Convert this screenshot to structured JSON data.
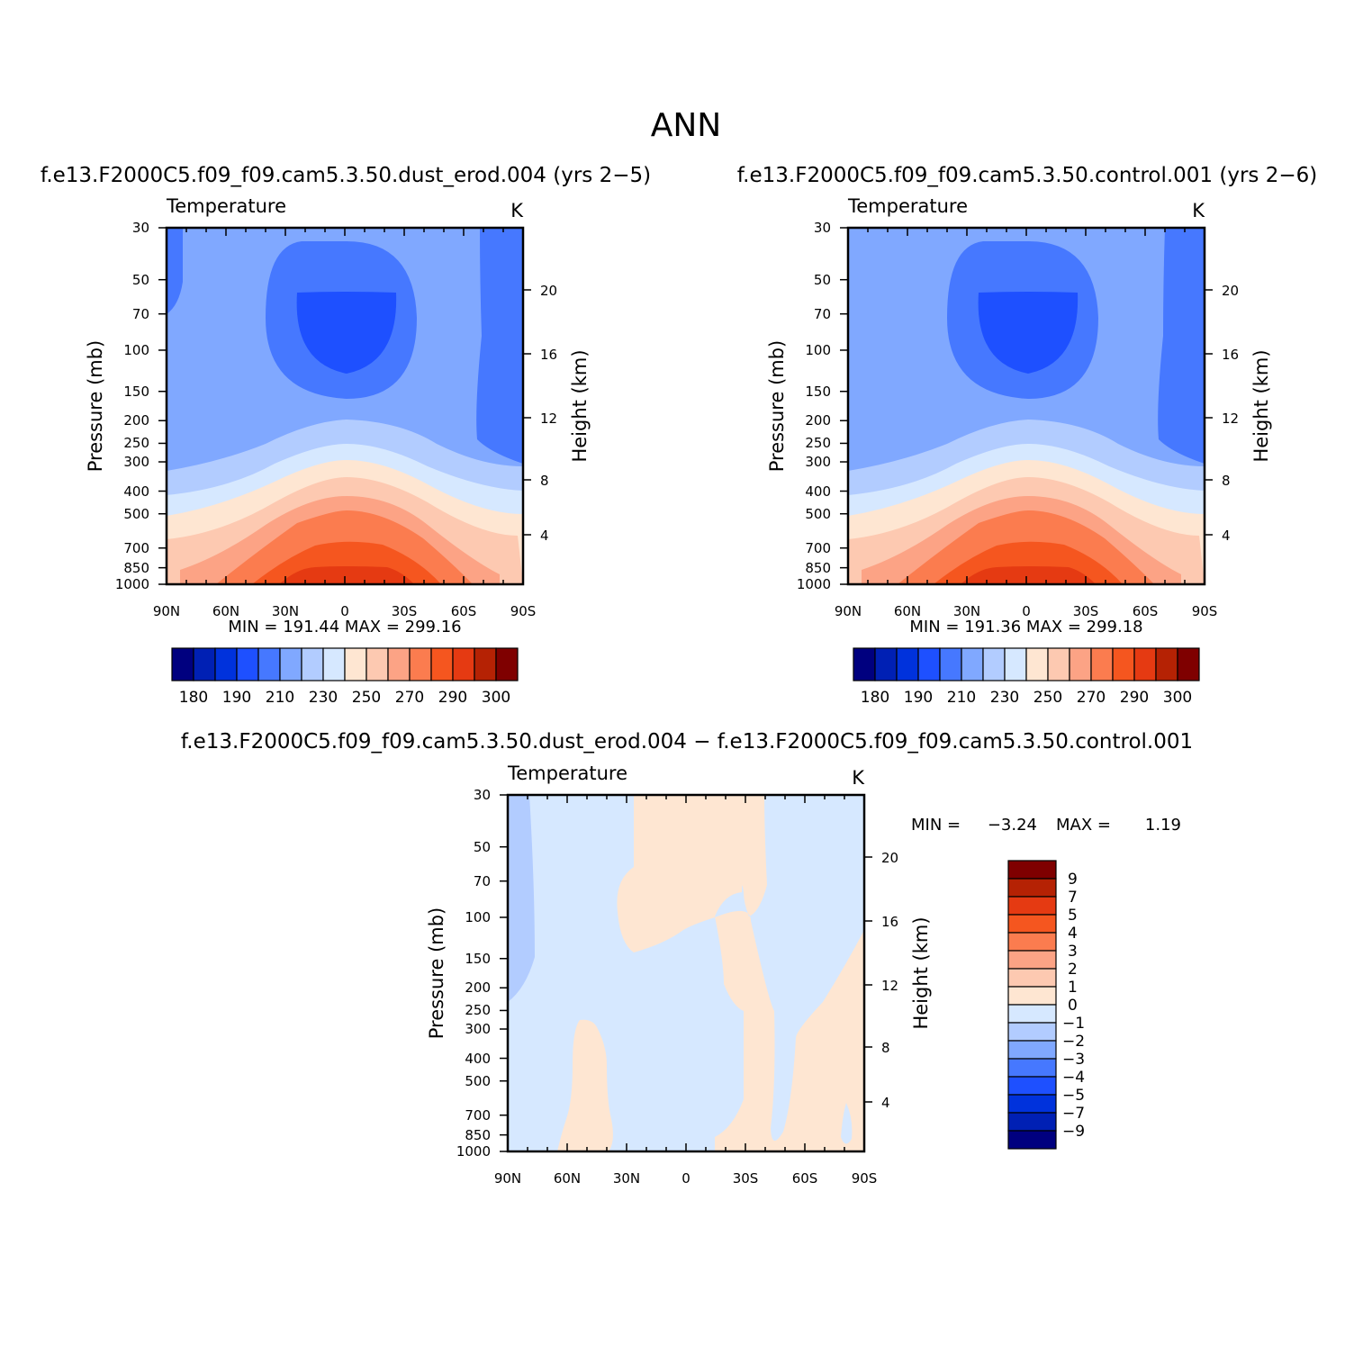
{
  "figure_title": "ANN",
  "palette": [
    "#00007f",
    "#0020b4",
    "#0032dc",
    "#1e50ff",
    "#4678ff",
    "#80a8ff",
    "#b2ccff",
    "#d6e8ff",
    "#fee6d2",
    "#fdc9b1",
    "#fca385",
    "#fb7c4f",
    "#f5561f",
    "#e53a12",
    "#b52204",
    "#7f0000"
  ],
  "chart_data": [
    {
      "type": "contour",
      "case_title": "f.e13.F2000C5.f09_f09.cam5.3.50.dust_erod.004 (yrs 2−5)",
      "variable": "Temperature",
      "units": "K",
      "xlabel": "",
      "ylabel": "Pressure (mb)",
      "y2label": "Height (km)",
      "x_ticks": [
        "90N",
        "60N",
        "30N",
        "0",
        "30S",
        "60S",
        "90S"
      ],
      "y_ticks": [
        "30",
        "50",
        "70",
        "100",
        "150",
        "200",
        "250",
        "300",
        "400",
        "500",
        "700",
        "850",
        "1000"
      ],
      "y2_ticks": [
        "20",
        "16",
        "12",
        "8",
        "4"
      ],
      "stats": "MIN = 191.44   MAX = 299.16",
      "contour_levels": [
        "180",
        "190",
        "210",
        "230",
        "250",
        "270",
        "290",
        "300"
      ],
      "min": 191.44,
      "max": 299.16
    },
    {
      "type": "contour",
      "case_title": "f.e13.F2000C5.f09_f09.cam5.3.50.control.001 (yrs 2−6)",
      "variable": "Temperature",
      "units": "K",
      "xlabel": "",
      "ylabel": "Pressure (mb)",
      "y2label": "Height (km)",
      "x_ticks": [
        "90N",
        "60N",
        "30N",
        "0",
        "30S",
        "60S",
        "90S"
      ],
      "y_ticks": [
        "30",
        "50",
        "70",
        "100",
        "150",
        "200",
        "250",
        "300",
        "400",
        "500",
        "700",
        "850",
        "1000"
      ],
      "y2_ticks": [
        "20",
        "16",
        "12",
        "8",
        "4"
      ],
      "stats": "MIN = 191.36   MAX = 299.18",
      "contour_levels": [
        "180",
        "190",
        "210",
        "230",
        "250",
        "270",
        "290",
        "300"
      ],
      "min": 191.36,
      "max": 299.18
    },
    {
      "type": "contour",
      "case_title": "f.e13.F2000C5.f09_f09.cam5.3.50.dust_erod.004 − f.e13.F2000C5.f09_f09.cam5.3.50.control.001",
      "variable": "Temperature",
      "units": "K",
      "xlabel": "",
      "ylabel": "Pressure (mb)",
      "y2label": "Height (km)",
      "x_ticks": [
        "90N",
        "60N",
        "30N",
        "0",
        "30S",
        "60S",
        "90S"
      ],
      "y_ticks": [
        "30",
        "50",
        "70",
        "100",
        "150",
        "200",
        "250",
        "300",
        "400",
        "500",
        "700",
        "850",
        "1000"
      ],
      "y2_ticks": [
        "20",
        "16",
        "12",
        "8",
        "4"
      ],
      "stats_min_label": "MIN =",
      "stats_min_value": "−3.24",
      "stats_max_label": "MAX =",
      "stats_max_value": "1.19",
      "contour_levels": [
        "9",
        "7",
        "5",
        "4",
        "3",
        "2",
        "1",
        "0",
        "−1",
        "−2",
        "−3",
        "−4",
        "−5",
        "−7",
        "−9"
      ],
      "min": -3.24,
      "max": 1.19
    }
  ]
}
